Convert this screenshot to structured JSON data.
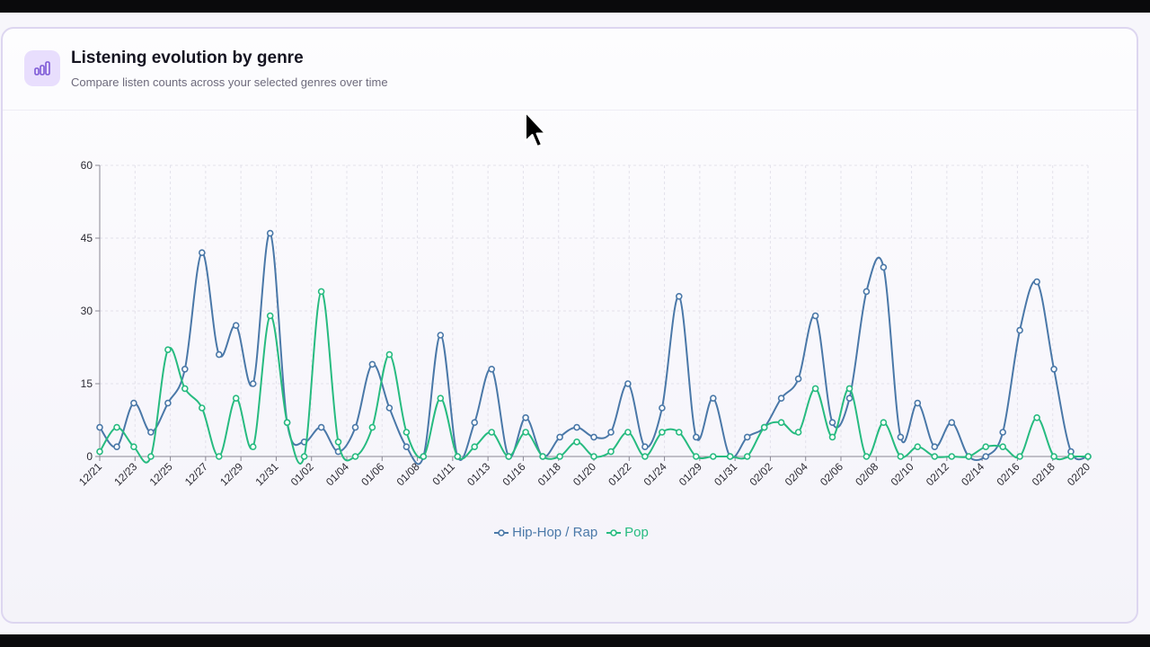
{
  "card": {
    "title": "Listening evolution by genre",
    "subtitle": "Compare listen counts across your selected genres over time",
    "icon": "bar-chart-icon"
  },
  "colors": {
    "hiphop": "#4a78a8",
    "pop": "#27bb80",
    "grid": "#e3e1ea",
    "axis": "#8a8894",
    "icon": "#7c58d6"
  },
  "chart_data": {
    "type": "line",
    "ylim": [
      0,
      60
    ],
    "y_ticks": [
      "0",
      "15",
      "30",
      "45",
      "60"
    ],
    "x_tick_labels": [
      "12/21",
      "12/23",
      "12/25",
      "12/27",
      "12/29",
      "12/31",
      "01/02",
      "01/04",
      "01/06",
      "01/08",
      "01/11",
      "01/13",
      "01/16",
      "01/18",
      "01/20",
      "01/22",
      "01/24",
      "01/29",
      "01/31",
      "02/02",
      "02/04",
      "02/06",
      "02/08",
      "02/10",
      "02/12",
      "02/14",
      "02/16",
      "02/18",
      "02/20"
    ],
    "series": [
      {
        "name": "Hip-Hop / Rap",
        "color": "#4a78a8",
        "values": [
          6,
          2,
          11,
          5,
          11,
          18,
          42,
          21,
          27,
          15,
          46,
          7,
          3,
          6,
          1,
          6,
          19,
          10,
          2,
          0,
          25,
          0,
          7,
          18,
          0,
          8,
          0,
          4,
          6,
          4,
          5,
          15,
          2,
          10,
          33,
          4,
          12,
          0,
          4,
          6,
          12,
          16,
          29,
          7,
          12,
          34,
          39,
          4,
          11,
          2,
          7,
          0,
          0,
          5,
          26,
          36,
          18,
          1,
          0
        ]
      },
      {
        "name": "Pop",
        "color": "#27bb80",
        "values": [
          1,
          6,
          2,
          0,
          22,
          14,
          10,
          0,
          12,
          2,
          29,
          7,
          0,
          34,
          3,
          0,
          6,
          21,
          5,
          0,
          12,
          0,
          2,
          5,
          0,
          5,
          0,
          0,
          3,
          0,
          1,
          5,
          0,
          5,
          5,
          0,
          0,
          0,
          0,
          6,
          7,
          5,
          14,
          4,
          14,
          0,
          7,
          0,
          2,
          0,
          0,
          0,
          2,
          2,
          0,
          8,
          0,
          0,
          0
        ]
      }
    ]
  }
}
